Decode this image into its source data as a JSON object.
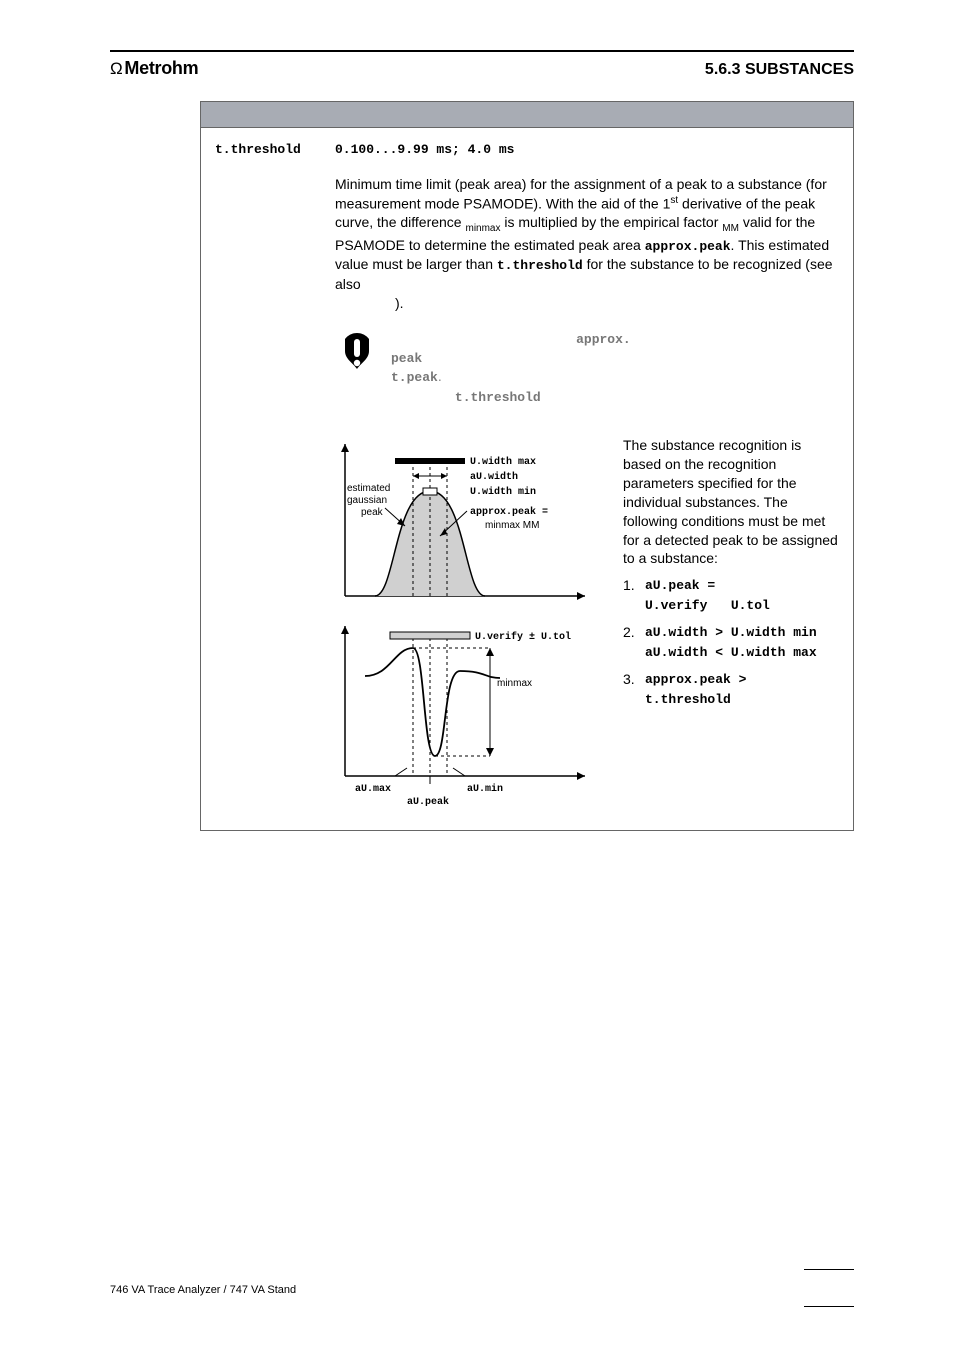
{
  "header": {
    "brand_omega": "Ω",
    "brand_name": "Metrohm",
    "section": "5.6.3 SUBSTANCES"
  },
  "param": {
    "name": "t.threshold",
    "value": "0.100...9.99 ms; 4.0 ms"
  },
  "body": {
    "p1_a": "Minimum time limit (peak area) for the assignment of a peak to a substance (for measurement mode PSAMODE). With the aid of the 1",
    "p1_sup": "st",
    "p1_b": " derivative of the peak curve, the difference ",
    "p1_sub1": "minmax",
    "p1_c": " is multiplied by the empirical factor ",
    "p1_sub2": "MM",
    "p1_d": " valid for the PSAMODE to determine the estimated peak area ",
    "p1_mono1": "approx.peak",
    "p1_e": ". This estimated value must be larger than ",
    "p1_mono2": "t.threshold",
    "p1_f": " for the substance to be recognized (see also",
    "p1_g": ")."
  },
  "note": {
    "t1": "",
    "m1": "approx.",
    "m2": "peak",
    "t2": "",
    "m3": "t.peak",
    "t3": ".",
    "t4": "",
    "m4": "t.threshold",
    "t5": ""
  },
  "figure_labels": {
    "u_width_max": "U.width max",
    "au_width": "aU.width",
    "u_width_min": "U.width min",
    "approx_peak": "approx.peak =",
    "minmax_mm": "minmax    MM",
    "est1": "estimated",
    "est2": "gaussian",
    "est3": "peak",
    "u_verify": "U.verify ± U.tol",
    "minmax": "minmax",
    "au_max": "aU.max",
    "au_peak": "aU.peak",
    "au_min": "aU.min",
    "gray_fill": "#d0d0d0",
    "line_color": "#000000"
  },
  "side_text": {
    "intro": "The substance recognition is based on the recognition parameters specified for the individual substances. The following conditions must be met for a detected peak to be assigned to a substance:"
  },
  "conditions": [
    {
      "num": "1.",
      "lines": [
        "aU.peak =",
        "U.verify   U.tol"
      ]
    },
    {
      "num": "2.",
      "lines": [
        "aU.width > U.width min",
        "aU.width < U.width max"
      ]
    },
    {
      "num": "3.",
      "lines": [
        "approx.peak >",
        "t.threshold"
      ]
    }
  ],
  "footer": {
    "text": "746 VA Trace Analyzer / 747 VA Stand"
  }
}
